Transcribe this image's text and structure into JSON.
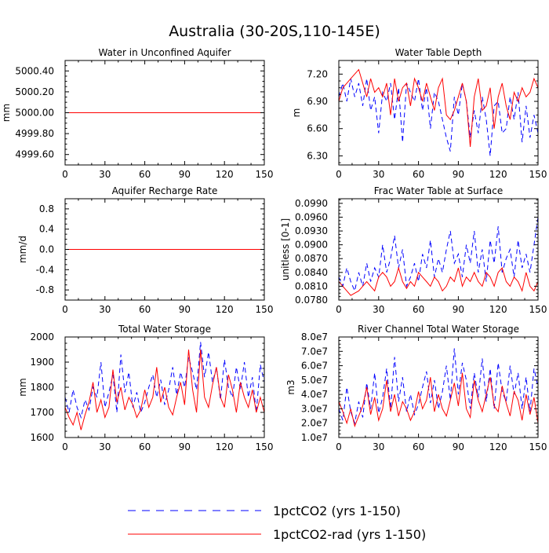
{
  "figure": {
    "title": "Australia (30-20S,110-145E)",
    "legend": [
      {
        "label": "1pctCO2 (yrs 1-150)",
        "color": "#0000ff",
        "dash": "dashed"
      },
      {
        "label": "1pctCO2-rad (yrs 1-150)",
        "color": "#ff0000",
        "dash": "solid"
      }
    ]
  },
  "chart_data": [
    {
      "type": "line",
      "title": "Water in Unconfined Aquifer",
      "ylabel": "mm",
      "xlim": [
        0,
        150
      ],
      "ylim": [
        4999.5,
        5000.5
      ],
      "xticks": [
        "0",
        "30",
        "60",
        "90",
        "120",
        "150"
      ],
      "yticks": [
        "4999.60",
        "4999.80",
        "5000.00",
        "5000.20",
        "5000.40"
      ],
      "series": [
        {
          "name": "1pctCO2 (yrs 1-150)",
          "x": [
            0,
            150
          ],
          "values": [
            5000.0,
            5000.0
          ]
        },
        {
          "name": "1pctCO2-rad (yrs 1-150)",
          "x": [
            0,
            150
          ],
          "values": [
            5000.0,
            5000.0
          ]
        }
      ]
    },
    {
      "type": "line",
      "title": "Water Table Depth",
      "ylabel": "m",
      "xlim": [
        0,
        150
      ],
      "ylim": [
        6.2,
        7.35
      ],
      "xticks": [
        "0",
        "30",
        "60",
        "90",
        "120",
        "150"
      ],
      "yticks": [
        "6.30",
        "6.60",
        "6.90",
        "7.20"
      ],
      "series": [
        {
          "name": "1pctCO2 (yrs 1-150)",
          "x": [
            0,
            3,
            6,
            9,
            12,
            15,
            18,
            21,
            24,
            27,
            30,
            33,
            36,
            39,
            42,
            45,
            48,
            51,
            54,
            57,
            60,
            63,
            66,
            69,
            72,
            75,
            78,
            81,
            84,
            87,
            90,
            93,
            96,
            99,
            102,
            105,
            108,
            111,
            114,
            117,
            120,
            123,
            126,
            129,
            132,
            135,
            138,
            141,
            144,
            147,
            150
          ],
          "values": [
            6.95,
            7.1,
            6.9,
            7.15,
            6.95,
            7.1,
            6.85,
            7.15,
            6.8,
            6.95,
            6.55,
            7.0,
            6.9,
            7.1,
            6.7,
            7.05,
            6.45,
            7.1,
            7.0,
            6.9,
            7.15,
            6.8,
            7.05,
            6.6,
            7.0,
            6.9,
            6.7,
            6.5,
            6.35,
            6.95,
            6.75,
            7.1,
            6.9,
            6.5,
            6.8,
            6.55,
            6.95,
            6.7,
            6.3,
            6.85,
            6.9,
            6.55,
            6.6,
            6.95,
            6.7,
            7.0,
            6.45,
            6.85,
            6.5,
            6.75,
            6.55
          ]
        },
        {
          "name": "1pctCO2-rad (yrs 1-150)",
          "x": [
            0,
            3,
            6,
            9,
            12,
            15,
            18,
            21,
            24,
            27,
            30,
            33,
            36,
            39,
            42,
            45,
            48,
            51,
            54,
            57,
            60,
            63,
            66,
            69,
            72,
            75,
            78,
            81,
            84,
            87,
            90,
            93,
            96,
            99,
            102,
            105,
            108,
            111,
            114,
            117,
            120,
            123,
            126,
            129,
            132,
            135,
            138,
            141,
            144,
            147,
            150
          ],
          "values": [
            6.9,
            7.05,
            7.1,
            7.15,
            7.2,
            7.25,
            7.1,
            6.95,
            7.15,
            7.0,
            7.05,
            6.95,
            7.1,
            6.75,
            7.15,
            6.9,
            7.05,
            7.1,
            6.85,
            7.15,
            7.05,
            6.9,
            7.1,
            6.95,
            6.8,
            7.05,
            7.15,
            6.75,
            6.7,
            6.8,
            6.95,
            7.1,
            6.9,
            6.4,
            6.95,
            7.15,
            6.8,
            6.85,
            7.05,
            6.6,
            6.95,
            7.1,
            6.85,
            6.7,
            7.0,
            6.9,
            7.05,
            6.95,
            7.0,
            7.15,
            7.05
          ]
        }
      ]
    },
    {
      "type": "line",
      "title": "Aquifer Recharge Rate",
      "ylabel": "mm/d",
      "xlim": [
        0,
        150
      ],
      "ylim": [
        -1.0,
        1.0
      ],
      "xticks": [
        "0",
        "30",
        "60",
        "90",
        "120",
        "150"
      ],
      "yticks": [
        "-0.8",
        "-0.4",
        "0.0",
        "0.4",
        "0.8"
      ],
      "series": [
        {
          "name": "1pctCO2 (yrs 1-150)",
          "x": [
            0,
            150
          ],
          "values": [
            0.0,
            0.0
          ]
        },
        {
          "name": "1pctCO2-rad (yrs 1-150)",
          "x": [
            0,
            150
          ],
          "values": [
            0.0,
            0.0
          ]
        }
      ]
    },
    {
      "type": "line",
      "title": "Frac Water Table at Surface",
      "ylabel": "unitless [0-1]",
      "xlim": [
        0,
        150
      ],
      "ylim": [
        0.078,
        0.1
      ],
      "xticks": [
        "0",
        "30",
        "60",
        "90",
        "120",
        "150"
      ],
      "yticks": [
        "0.0780",
        "0.0810",
        "0.0840",
        "0.0870",
        "0.0900",
        "0.0930",
        "0.0960",
        "0.0990"
      ],
      "series": [
        {
          "name": "1pctCO2 (yrs 1-150)",
          "x": [
            0,
            3,
            6,
            9,
            12,
            15,
            18,
            21,
            24,
            27,
            30,
            33,
            36,
            39,
            42,
            45,
            48,
            51,
            54,
            57,
            60,
            63,
            66,
            69,
            72,
            75,
            78,
            81,
            84,
            87,
            90,
            93,
            96,
            99,
            102,
            105,
            108,
            111,
            114,
            117,
            120,
            123,
            126,
            129,
            132,
            135,
            138,
            141,
            144,
            147,
            150
          ],
          "values": [
            0.083,
            0.081,
            0.085,
            0.082,
            0.08,
            0.084,
            0.081,
            0.086,
            0.082,
            0.085,
            0.083,
            0.09,
            0.084,
            0.087,
            0.092,
            0.085,
            0.089,
            0.081,
            0.083,
            0.086,
            0.082,
            0.088,
            0.085,
            0.091,
            0.083,
            0.087,
            0.084,
            0.089,
            0.093,
            0.086,
            0.088,
            0.083,
            0.09,
            0.086,
            0.093,
            0.084,
            0.089,
            0.082,
            0.091,
            0.086,
            0.094,
            0.084,
            0.087,
            0.089,
            0.083,
            0.091,
            0.085,
            0.088,
            0.084,
            0.09,
            0.096
          ]
        },
        {
          "name": "1pctCO2-rad (yrs 1-150)",
          "x": [
            0,
            3,
            6,
            9,
            12,
            15,
            18,
            21,
            24,
            27,
            30,
            33,
            36,
            39,
            42,
            45,
            48,
            51,
            54,
            57,
            60,
            63,
            66,
            69,
            72,
            75,
            78,
            81,
            84,
            87,
            90,
            93,
            96,
            99,
            102,
            105,
            108,
            111,
            114,
            117,
            120,
            123,
            126,
            129,
            132,
            135,
            138,
            141,
            144,
            147,
            150
          ],
          "values": [
            0.082,
            0.081,
            0.08,
            0.079,
            0.0795,
            0.08,
            0.081,
            0.082,
            0.081,
            0.08,
            0.083,
            0.084,
            0.083,
            0.081,
            0.082,
            0.085,
            0.082,
            0.0805,
            0.082,
            0.081,
            0.084,
            0.083,
            0.082,
            0.081,
            0.083,
            0.082,
            0.08,
            0.081,
            0.083,
            0.082,
            0.085,
            0.081,
            0.083,
            0.082,
            0.084,
            0.082,
            0.081,
            0.084,
            0.083,
            0.081,
            0.084,
            0.085,
            0.082,
            0.081,
            0.083,
            0.082,
            0.08,
            0.084,
            0.081,
            0.08,
            0.082
          ]
        }
      ]
    },
    {
      "type": "line",
      "title": "Total Water Storage",
      "ylabel": "mm",
      "xlim": [
        0,
        150
      ],
      "ylim": [
        1600,
        2000
      ],
      "xticks": [
        "0",
        "30",
        "60",
        "90",
        "120",
        "150"
      ],
      "yticks": [
        "1600",
        "1700",
        "1800",
        "1900",
        "2000"
      ],
      "series": [
        {
          "name": "1pctCO2 (yrs 1-150)",
          "x": [
            0,
            3,
            6,
            9,
            12,
            15,
            18,
            21,
            24,
            27,
            30,
            33,
            36,
            39,
            42,
            45,
            48,
            51,
            54,
            57,
            60,
            63,
            66,
            69,
            72,
            75,
            78,
            81,
            84,
            87,
            90,
            93,
            96,
            99,
            102,
            105,
            108,
            111,
            114,
            117,
            120,
            123,
            126,
            129,
            132,
            135,
            138,
            141,
            144,
            147,
            150
          ],
          "values": [
            1760,
            1700,
            1790,
            1720,
            1680,
            1750,
            1710,
            1800,
            1760,
            1900,
            1720,
            1780,
            1850,
            1700,
            1930,
            1780,
            1860,
            1720,
            1780,
            1700,
            1740,
            1800,
            1850,
            1760,
            1830,
            1730,
            1790,
            1880,
            1770,
            1860,
            1800,
            1920,
            1860,
            1790,
            1980,
            1840,
            1940,
            1820,
            1880,
            1750,
            1910,
            1800,
            1760,
            1880,
            1790,
            1900,
            1760,
            1840,
            1700,
            1890,
            1820
          ]
        },
        {
          "name": "1pctCO2-rad (yrs 1-150)",
          "x": [
            0,
            3,
            6,
            9,
            12,
            15,
            18,
            21,
            24,
            27,
            30,
            33,
            36,
            39,
            42,
            45,
            48,
            51,
            54,
            57,
            60,
            63,
            66,
            69,
            72,
            75,
            78,
            81,
            84,
            87,
            90,
            93,
            96,
            99,
            102,
            105,
            108,
            111,
            114,
            117,
            120,
            123,
            126,
            129,
            132,
            135,
            138,
            141,
            144,
            147,
            150
          ],
          "values": [
            1720,
            1680,
            1650,
            1700,
            1630,
            1690,
            1740,
            1820,
            1700,
            1750,
            1680,
            1720,
            1870,
            1740,
            1800,
            1710,
            1760,
            1730,
            1680,
            1710,
            1790,
            1720,
            1760,
            1880,
            1740,
            1800,
            1720,
            1690,
            1760,
            1820,
            1730,
            1950,
            1790,
            1700,
            1950,
            1760,
            1720,
            1810,
            1880,
            1760,
            1720,
            1850,
            1790,
            1700,
            1820,
            1760,
            1720,
            1790,
            1700,
            1760,
            1700
          ]
        }
      ]
    },
    {
      "type": "line",
      "title": "River Channel Total Water Storage",
      "ylabel": "m3",
      "xlim": [
        0,
        150
      ],
      "ylim": [
        10000000,
        80000000
      ],
      "xticks": [
        "0",
        "30",
        "60",
        "90",
        "120",
        "150"
      ],
      "yticks": [
        "1.0e7",
        "2.0e7",
        "3.0e7",
        "4.0e7",
        "5.0e7",
        "6.0e7",
        "7.0e7",
        "8.0e7"
      ],
      "series": [
        {
          "name": "1pctCO2 (yrs 1-150)",
          "x": [
            0,
            3,
            6,
            9,
            12,
            15,
            18,
            21,
            24,
            27,
            30,
            33,
            36,
            39,
            42,
            45,
            48,
            51,
            54,
            57,
            60,
            63,
            66,
            69,
            72,
            75,
            78,
            81,
            84,
            87,
            90,
            93,
            96,
            99,
            102,
            105,
            108,
            111,
            114,
            117,
            120,
            123,
            126,
            129,
            132,
            135,
            138,
            141,
            144,
            147,
            150
          ],
          "values": [
            30000000,
            22000000,
            45000000,
            28000000,
            20000000,
            35000000,
            24000000,
            48000000,
            30000000,
            55000000,
            27000000,
            38000000,
            58000000,
            30000000,
            66000000,
            35000000,
            52000000,
            28000000,
            40000000,
            26000000,
            33000000,
            45000000,
            56000000,
            34000000,
            50000000,
            30000000,
            42000000,
            60000000,
            36000000,
            72000000,
            40000000,
            62000000,
            50000000,
            30000000,
            55000000,
            38000000,
            65000000,
            35000000,
            58000000,
            30000000,
            62000000,
            42000000,
            35000000,
            60000000,
            40000000,
            55000000,
            30000000,
            52000000,
            28000000,
            58000000,
            45000000
          ]
        },
        {
          "name": "1pctCO2-rad (yrs 1-150)",
          "x": [
            0,
            3,
            6,
            9,
            12,
            15,
            18,
            21,
            24,
            27,
            30,
            33,
            36,
            39,
            42,
            45,
            48,
            51,
            54,
            57,
            60,
            63,
            66,
            69,
            72,
            75,
            78,
            81,
            84,
            87,
            90,
            93,
            96,
            99,
            102,
            105,
            108,
            111,
            114,
            117,
            120,
            123,
            126,
            129,
            132,
            135,
            138,
            141,
            144,
            147,
            150
          ],
          "values": [
            35000000,
            28000000,
            20000000,
            30000000,
            18000000,
            25000000,
            32000000,
            45000000,
            26000000,
            38000000,
            22000000,
            30000000,
            50000000,
            28000000,
            40000000,
            25000000,
            35000000,
            30000000,
            22000000,
            28000000,
            42000000,
            30000000,
            36000000,
            52000000,
            28000000,
            40000000,
            30000000,
            25000000,
            36000000,
            48000000,
            32000000,
            55000000,
            30000000,
            24000000,
            50000000,
            36000000,
            28000000,
            40000000,
            52000000,
            32000000,
            28000000,
            46000000,
            34000000,
            25000000,
            42000000,
            36000000,
            22000000,
            40000000,
            26000000,
            38000000,
            20000000
          ]
        }
      ]
    }
  ]
}
